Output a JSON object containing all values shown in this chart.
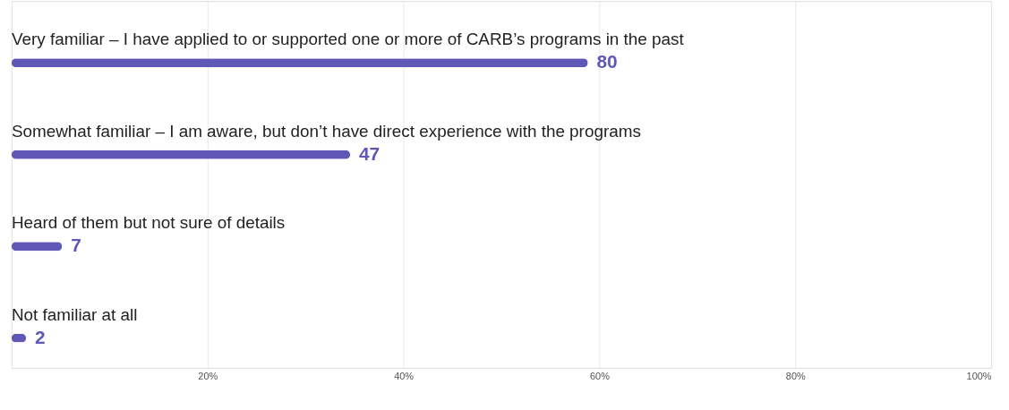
{
  "chart_data": {
    "type": "bar",
    "orientation": "horizontal",
    "categories": [
      "Very familiar – I have applied to or supported one or more of CARB’s programs in the past",
      "Somewhat familiar – I am aware, but don’t have direct experience with the programs",
      "Heard of them but not sure of details",
      "Not familiar at all"
    ],
    "values": [
      80,
      47,
      7,
      2
    ],
    "color": "#5f58b6",
    "data_labels": true,
    "xlim": [
      0,
      136
    ],
    "x2lim": [
      0,
      100
    ],
    "x2ticks": [
      {
        "value": 0,
        "label": null
      },
      {
        "value": 20,
        "label": "20%"
      },
      {
        "value": 40,
        "label": "40%"
      },
      {
        "value": 60,
        "label": "60%"
      },
      {
        "value": 80,
        "label": "80%"
      },
      {
        "value": 100,
        "label": "100%"
      }
    ],
    "grid": "x"
  }
}
